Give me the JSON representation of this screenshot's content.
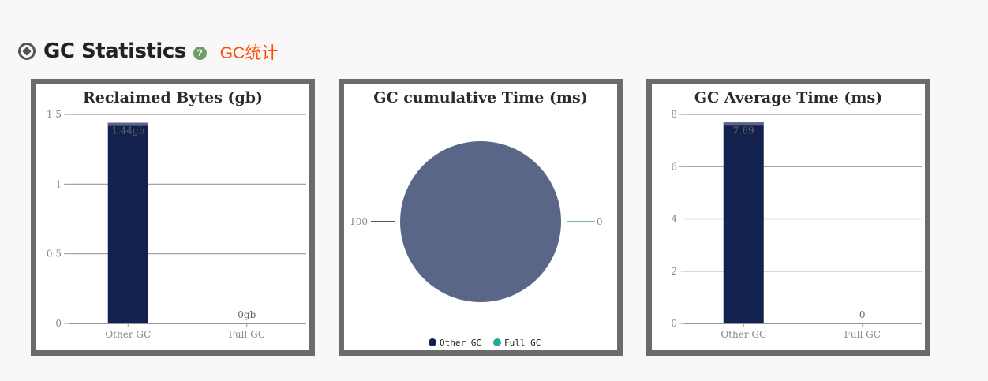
{
  "section": {
    "title": "GC Statistics",
    "subtitle": "GC统计",
    "icon": "compass-icon",
    "help_icon": "question-circle-icon"
  },
  "colors": {
    "dark": "#13214f",
    "pie": "#5a6688",
    "teal": "#2aa69a",
    "accent": "#ff4d00"
  },
  "chart_data": [
    {
      "type": "bar",
      "title": "Reclaimed Bytes (gb)",
      "categories": [
        "Other GC",
        "Full GC"
      ],
      "values": [
        1.44,
        0
      ],
      "data_labels": [
        "1.44gb",
        "0gb"
      ],
      "ylim": [
        0,
        1.5
      ],
      "yticks": [
        0,
        0.5,
        1,
        1.5
      ],
      "ytick_labels": [
        "0",
        "0.5",
        "1",
        "1.5"
      ],
      "grid": true
    },
    {
      "type": "pie",
      "title": "GC cumulative Time (ms)",
      "categories": [
        "Other GC",
        "Full GC"
      ],
      "values": [
        100,
        0
      ],
      "data_labels": [
        "100",
        "0"
      ],
      "legend": [
        "Other GC",
        "Full GC"
      ],
      "legend_position": "bottom"
    },
    {
      "type": "bar",
      "title": "GC Average Time (ms)",
      "categories": [
        "Other GC",
        "Full GC"
      ],
      "values": [
        7.69,
        0
      ],
      "data_labels": [
        "7.69",
        "0"
      ],
      "ylim": [
        0,
        8
      ],
      "yticks": [
        0,
        2,
        4,
        6,
        8
      ],
      "ytick_labels": [
        "0",
        "2",
        "4",
        "6",
        "8"
      ],
      "grid": true
    }
  ]
}
